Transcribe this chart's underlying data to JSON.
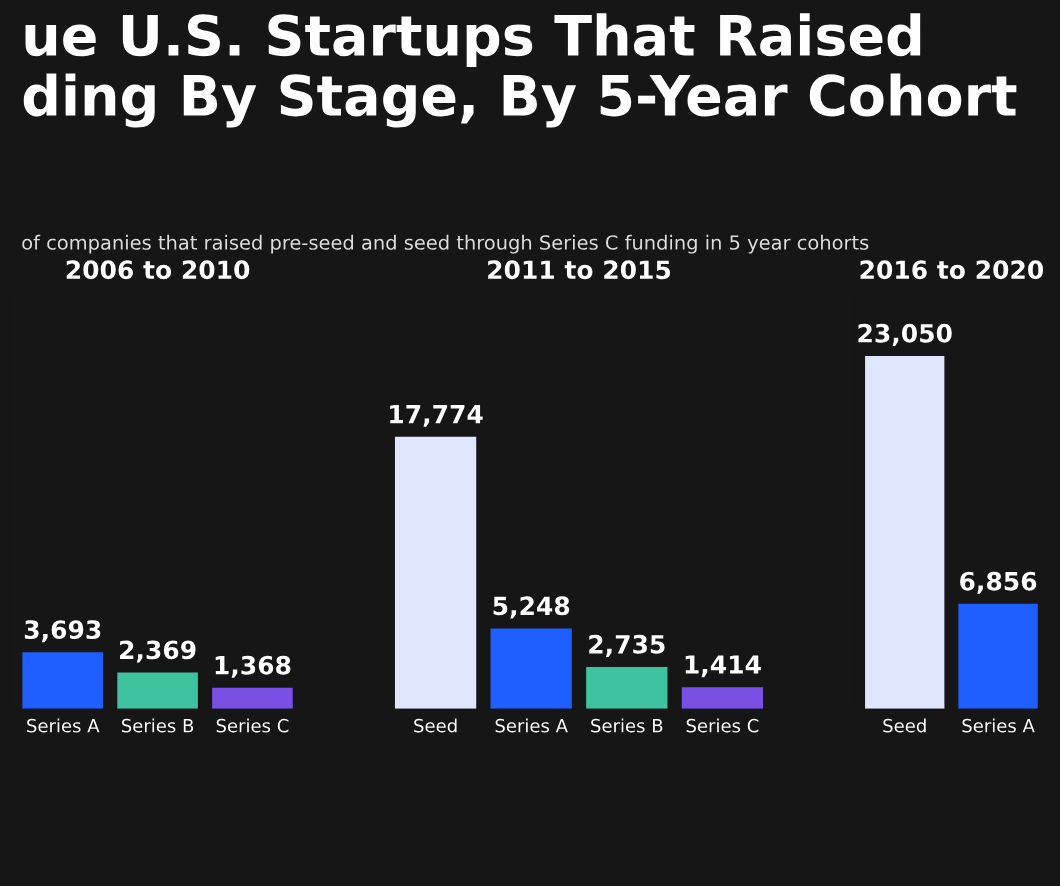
{
  "chart_data": [
    {
      "type": "other",
      "title": "ue U.S. Startups That Raised\nding By Stage, By 5-Year Cohort",
      "subtitle": "of companies that raised pre-seed and seed through Series C funding in 5 year cohorts"
    },
    {
      "type": "bar",
      "title": "2006 to 2010",
      "categories": [
        "Series A",
        "Series B",
        "Series C"
      ],
      "colors": [
        "#1f5eff",
        "#3ec29f",
        "#7a4fe6"
      ],
      "values": [
        3693,
        2369,
        1368
      ],
      "value_labels": [
        "3,693",
        "2,369",
        "1,368"
      ]
    },
    {
      "type": "bar",
      "title": "2011 to 2015",
      "categories": [
        "Seed",
        "Series A",
        "Series B",
        "Series C"
      ],
      "colors": [
        "#dfe6ff",
        "#1f5eff",
        "#3ec29f",
        "#7a4fe6"
      ],
      "values": [
        17774,
        5248,
        2735,
        1414
      ],
      "value_labels": [
        "17,774",
        "5,248",
        "2,735",
        "1,414"
      ]
    },
    {
      "type": "bar",
      "title": "2016 to 2020",
      "categories": [
        "Seed",
        "Series A"
      ],
      "colors": [
        "#dfe6ff",
        "#1f5eff"
      ],
      "values": [
        23050,
        6856
      ],
      "value_labels": [
        "23,050",
        "6,856"
      ]
    }
  ]
}
